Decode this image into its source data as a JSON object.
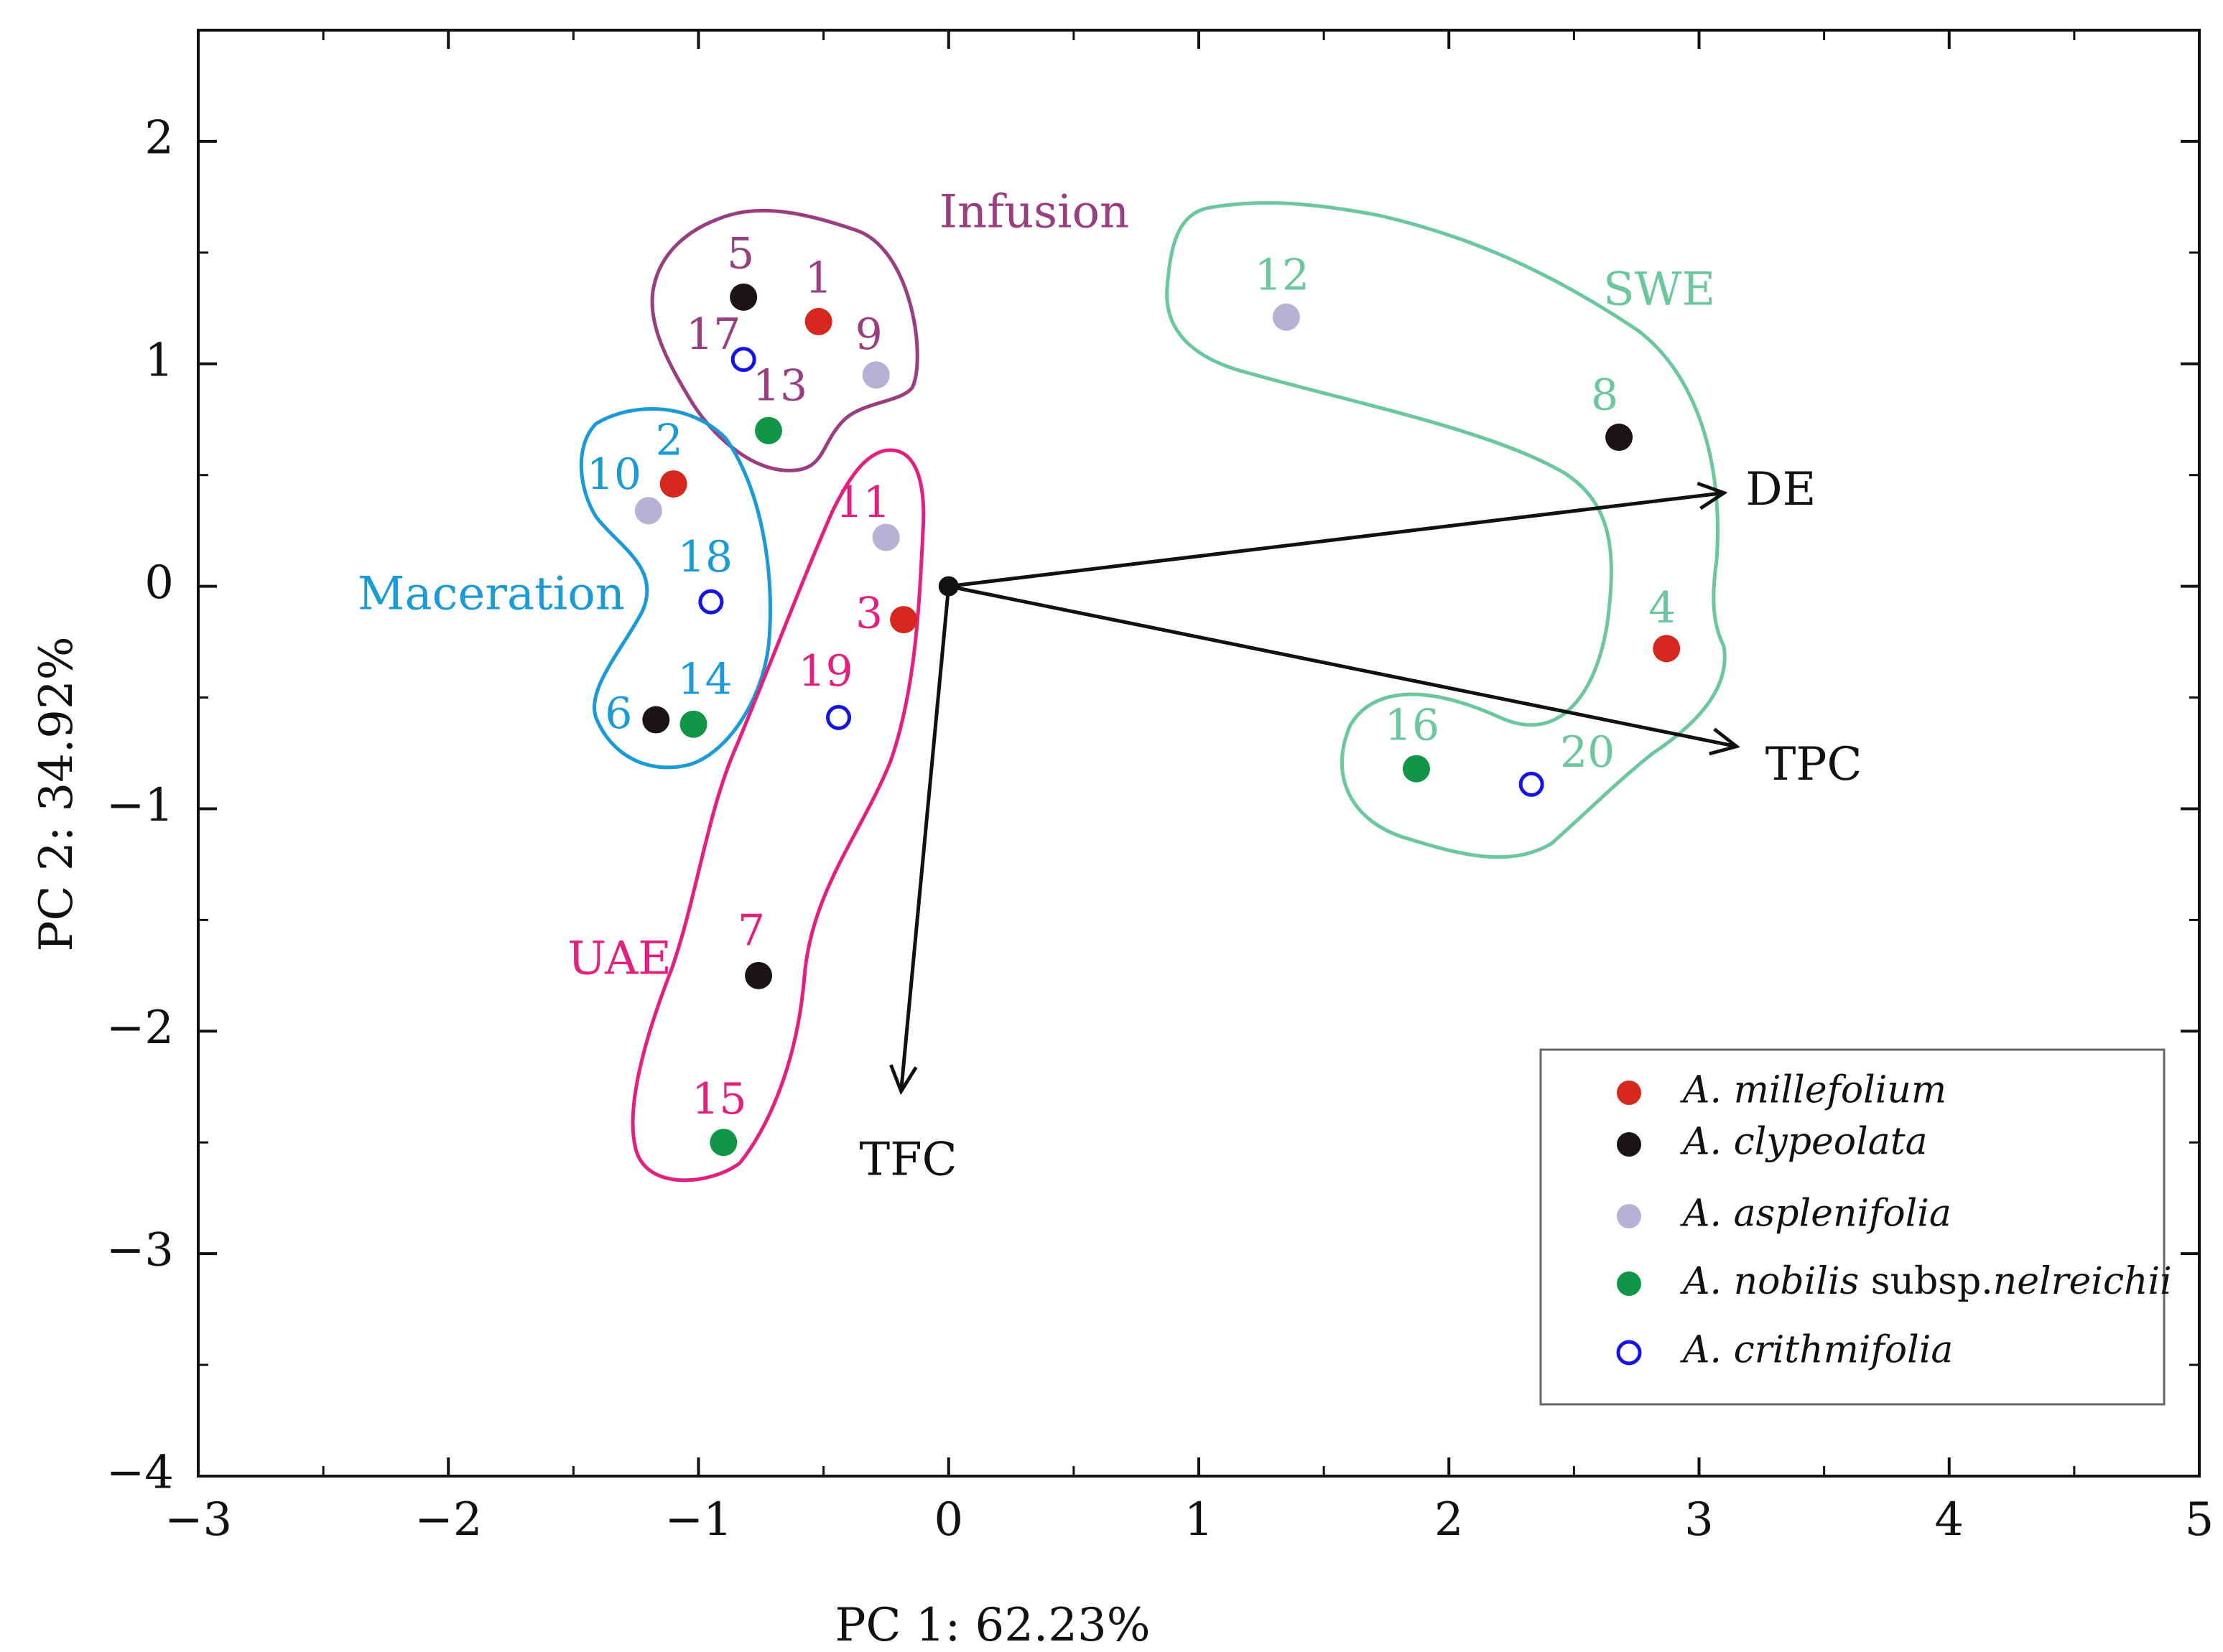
{
  "chart_data": {
    "type": "scatter",
    "title": "",
    "xlabel": "PC 1: 62.23%",
    "ylabel": "PC 2: 34.92%",
    "xlim": [
      -3,
      5
    ],
    "ylim": [
      -4,
      2.5
    ],
    "xticks": [
      -3,
      -2,
      -1,
      0,
      1,
      2,
      3,
      4,
      5
    ],
    "yticks": [
      -4,
      -3,
      -2,
      -1,
      0,
      1,
      2
    ],
    "xtick_labels": [
      "−3",
      "−2",
      "−1",
      "0",
      "1",
      "2",
      "3",
      "4",
      "5"
    ],
    "ytick_labels": [
      "−4",
      "−3",
      "−2",
      "−1",
      "0",
      "1",
      "2"
    ],
    "grid": false,
    "legend_position": "bottom-right",
    "series": [
      {
        "name": "A. millefolium",
        "color": "#d7281e",
        "marker": "filled-circle",
        "points": [
          {
            "label": "1",
            "x": -0.52,
            "y": 1.19
          },
          {
            "label": "2",
            "x": -1.1,
            "y": 0.46
          },
          {
            "label": "3",
            "x": -0.18,
            "y": -0.15
          },
          {
            "label": "4",
            "x": 2.87,
            "y": -0.28
          }
        ]
      },
      {
        "name": "A. clypeolata",
        "color": "#1a1414",
        "marker": "filled-circle",
        "points": [
          {
            "label": "5",
            "x": -0.82,
            "y": 1.3
          },
          {
            "label": "6",
            "x": -1.17,
            "y": -0.6
          },
          {
            "label": "7",
            "x": -0.76,
            "y": -1.75
          },
          {
            "label": "8",
            "x": 2.68,
            "y": 0.67
          }
        ]
      },
      {
        "name": "A. asplenifolia",
        "color": "#b7b1d6",
        "marker": "filled-circle",
        "points": [
          {
            "label": "9",
            "x": -0.29,
            "y": 0.95
          },
          {
            "label": "10",
            "x": -1.2,
            "y": 0.34
          },
          {
            "label": "11",
            "x": -0.25,
            "y": 0.22
          },
          {
            "label": "12",
            "x": 1.35,
            "y": 1.21
          }
        ]
      },
      {
        "name": "A. nobilis subsp.nelreichii",
        "name_italic_1": "A. nobilis",
        "name_plain": " subsp.",
        "name_italic_2": "nelreichii",
        "color": "#0f9646",
        "marker": "filled-circle",
        "points": [
          {
            "label": "13",
            "x": -0.72,
            "y": 0.7
          },
          {
            "label": "14",
            "x": -1.02,
            "y": -0.62
          },
          {
            "label": "15",
            "x": -0.9,
            "y": -2.5
          },
          {
            "label": "16",
            "x": 1.87,
            "y": -0.82
          }
        ]
      },
      {
        "name": "A. crithmifolia",
        "color": "#1414e6",
        "marker": "open-circle",
        "points": [
          {
            "label": "17",
            "x": -0.82,
            "y": 1.02
          },
          {
            "label": "18",
            "x": -0.95,
            "y": -0.07
          },
          {
            "label": "19",
            "x": -0.44,
            "y": -0.59
          },
          {
            "label": "20",
            "x": 2.33,
            "y": -0.89
          }
        ]
      }
    ],
    "groups": [
      {
        "name": "Infusion",
        "color": "#9a3e82",
        "members": [
          "1",
          "5",
          "9",
          "13",
          "17"
        ]
      },
      {
        "name": "Maceration",
        "color": "#1a9ad6",
        "members": [
          "2",
          "6",
          "10",
          "14",
          "18"
        ]
      },
      {
        "name": "UAE",
        "color": "#e3207f",
        "members": [
          "3",
          "7",
          "11",
          "15",
          "19"
        ]
      },
      {
        "name": "SWE",
        "color": "#6bc79d",
        "members": [
          "4",
          "8",
          "12",
          "16",
          "20"
        ]
      }
    ],
    "loadings": [
      {
        "name": "DE",
        "x": 3.1,
        "y": 0.42
      },
      {
        "name": "TPC",
        "x": 3.15,
        "y": -0.72
      },
      {
        "name": "TFC",
        "x": -0.19,
        "y": -2.27
      }
    ],
    "origin": {
      "x": 0,
      "y": 0
    }
  }
}
